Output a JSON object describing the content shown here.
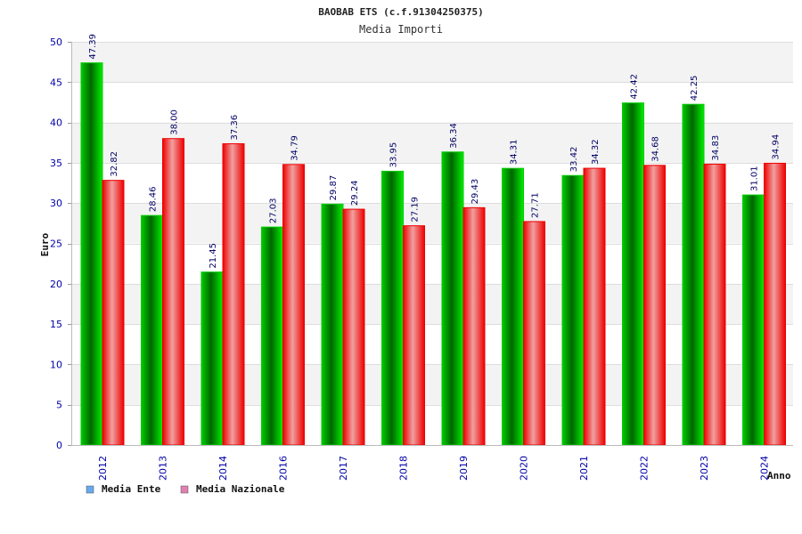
{
  "chart_data": {
    "type": "bar",
    "title": "BAOBAB ETS (c.f.91304250375)",
    "subtitle": "Media Importi",
    "xlabel": "Anno",
    "ylabel": "Euro",
    "ylim": [
      0,
      50
    ],
    "yticks": [
      "0",
      "5",
      "10",
      "15",
      "20",
      "25",
      "30",
      "35",
      "40",
      "45",
      "50"
    ],
    "categories": [
      "2012",
      "2013",
      "2014",
      "2016",
      "2017",
      "2018",
      "2019",
      "2020",
      "2021",
      "2022",
      "2023",
      "2024"
    ],
    "series": [
      {
        "name": "Media Ente",
        "color": "#00aa00",
        "legend_color": "#66aaee",
        "values": [
          47.39,
          28.46,
          21.45,
          27.03,
          29.87,
          33.95,
          36.34,
          34.31,
          33.42,
          42.42,
          42.25,
          31.01
        ],
        "labels": [
          "47.39",
          "28.46",
          "21.45",
          "27.03",
          "29.87",
          "33.95",
          "36.34",
          "34.31",
          "33.42",
          "42.42",
          "42.25",
          "31.01"
        ]
      },
      {
        "name": "Media Nazionale",
        "color": "#ee0000",
        "legend_color": "#e080b0",
        "values": [
          32.82,
          38.0,
          37.36,
          34.79,
          29.24,
          27.19,
          29.43,
          27.71,
          34.32,
          34.68,
          34.83,
          34.94
        ],
        "labels": [
          "32.82",
          "38.00",
          "37.36",
          "34.79",
          "29.24",
          "27.19",
          "29.43",
          "27.71",
          "34.32",
          "34.68",
          "34.83",
          "34.94"
        ]
      }
    ],
    "grid": true,
    "legend_position": "bottom-left"
  }
}
